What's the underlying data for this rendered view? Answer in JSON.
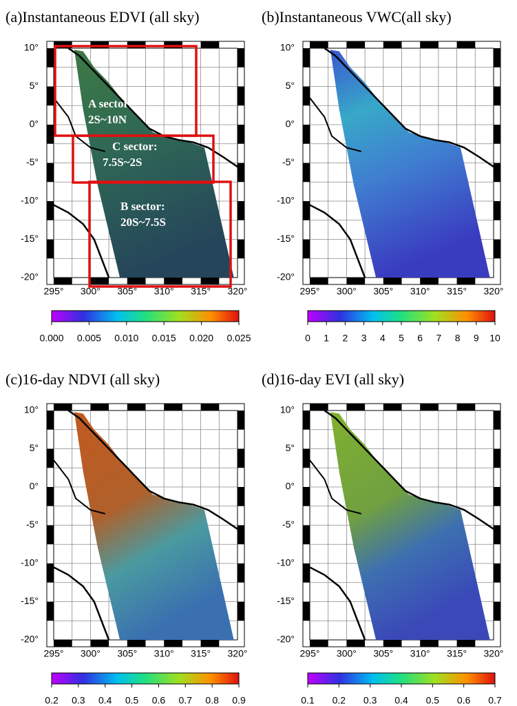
{
  "panels": [
    {
      "title": "(a)Instantaneous EDVI (all sky)",
      "yticks": [
        "10°",
        "5°",
        "0°",
        "-5°",
        "-10°",
        "-15°",
        "-20°"
      ],
      "xticks": [
        "295°",
        "300°",
        "305°",
        "310°",
        "315°",
        "320°"
      ],
      "colorbar": [
        "0.000",
        "0.005",
        "0.010",
        "0.015",
        "0.020",
        "0.025"
      ],
      "sectors": [
        {
          "name": "A sector:",
          "range": "2S~10N"
        },
        {
          "name": "C sector:",
          "range": "7.5S~2S"
        },
        {
          "name": "B sector:",
          "range": "20S~7.5S"
        }
      ]
    },
    {
      "title": "(b)Instantaneous VWC(all sky)",
      "yticks": [
        "10°",
        "5°",
        "0°",
        "-5°",
        "-10°",
        "-15°",
        "-20°"
      ],
      "xticks": [
        "295°",
        "300°",
        "305°",
        "310°",
        "315°",
        "320°"
      ],
      "colorbar": [
        "0",
        "1",
        "2",
        "3",
        "4",
        "5",
        "6",
        "7",
        "8",
        "9",
        "10"
      ]
    },
    {
      "title": "(c)16-day NDVI (all sky)",
      "yticks": [
        "10°",
        "5°",
        "0°",
        "-5°",
        "-10°",
        "-15°",
        "-20°"
      ],
      "xticks": [
        "295°",
        "300°",
        "305°",
        "310°",
        "315°",
        "320°"
      ],
      "colorbar": [
        "0.2",
        "0.3",
        "0.4",
        "0.5",
        "0.6",
        "0.7",
        "0.8",
        "0.9"
      ]
    },
    {
      "title": "(d)16-day EVI (all sky)",
      "yticks": [
        "10°",
        "5°",
        "0°",
        "-5°",
        "-10°",
        "-15°",
        "-20°"
      ],
      "xticks": [
        "295°",
        "300°",
        "305°",
        "310°",
        "315°",
        "320°"
      ],
      "colorbar": [
        "0.1",
        "0.2",
        "0.3",
        "0.4",
        "0.5",
        "0.6",
        "0.7"
      ]
    }
  ]
}
